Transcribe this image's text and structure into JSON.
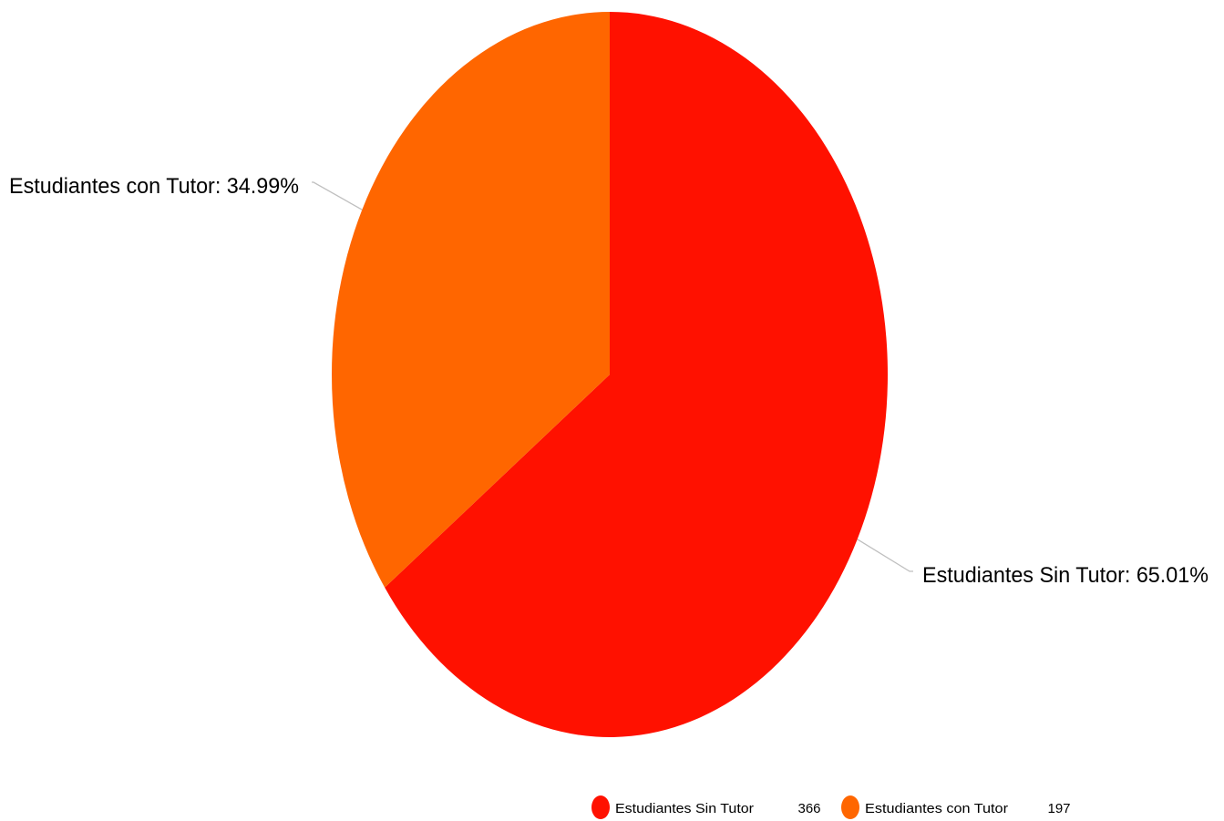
{
  "chart_data": {
    "type": "pie",
    "title": "",
    "slices": [
      {
        "label": "Estudiantes Sin Tutor",
        "value": 366,
        "percent_label": "Estudiantes Sin Tutor: 65.01%",
        "color": "#ff1100"
      },
      {
        "label": "Estudiantes con Tutor",
        "value": 197,
        "percent_label": "Estudiantes con Tutor: 34.99%",
        "color": "#ff6600"
      }
    ],
    "start_angle_deg": 0,
    "direction": "clockwise",
    "legend_position": "bottom-right"
  }
}
